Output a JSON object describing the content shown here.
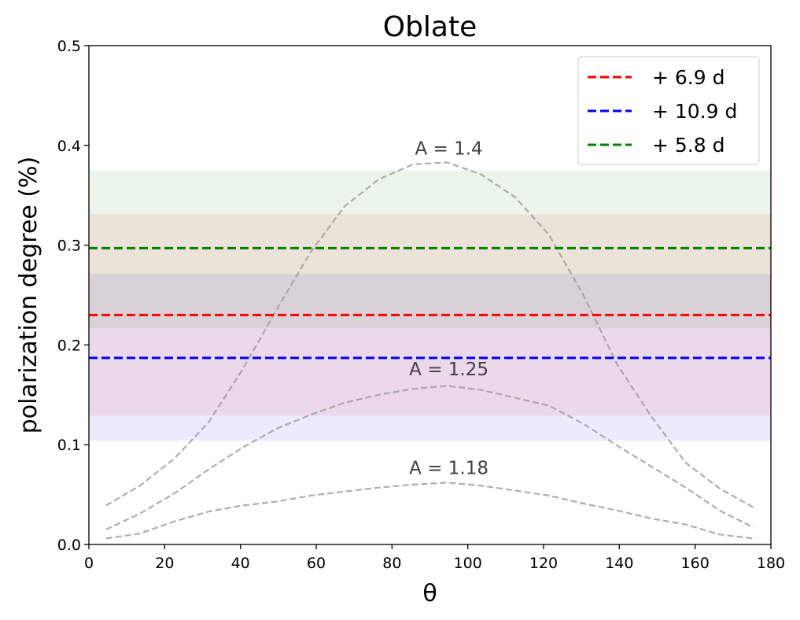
{
  "chart_data": {
    "type": "line",
    "title": "Oblate",
    "xlabel": "θ",
    "ylabel": "polarization degree (%)",
    "xlim": [
      0,
      180
    ],
    "ylim": [
      0,
      0.5
    ],
    "xticks": [
      0,
      20,
      40,
      60,
      80,
      100,
      120,
      140,
      160,
      180
    ],
    "yticks": [
      0.0,
      0.1,
      0.2,
      0.3,
      0.4,
      0.5
    ],
    "xtick_labels": [
      "0",
      "20",
      "40",
      "60",
      "80",
      "100",
      "120",
      "140",
      "160",
      "180"
    ],
    "ytick_labels": [
      "0.0",
      "0.1",
      "0.2",
      "0.3",
      "0.4",
      "0.5"
    ],
    "grid": false,
    "legend_position": "top-right",
    "bands": [
      {
        "color": "#0000ff",
        "opacity": 0.08,
        "y": [
          0.104,
          0.271
        ]
      },
      {
        "color": "#ff0000",
        "opacity": 0.08,
        "y": [
          0.129,
          0.331
        ]
      },
      {
        "color": "#008000",
        "opacity": 0.08,
        "y": [
          0.217,
          0.375
        ]
      }
    ],
    "hlines": [
      {
        "name": "+ 6.9 d",
        "value": 0.23,
        "color": "#ff0000"
      },
      {
        "name": "+ 10.9 d",
        "value": 0.187,
        "color": "#0000ff"
      },
      {
        "name": "+ 5.8 d",
        "value": 0.297,
        "color": "#008000"
      }
    ],
    "curves": [
      {
        "name": "A = 1.4",
        "label_at": [
          95,
          0.397
        ],
        "x": [
          4.5,
          13.5,
          22.5,
          31.5,
          40.5,
          49.5,
          58.5,
          67.5,
          76.5,
          85.5,
          94.5,
          103.5,
          112.5,
          121.5,
          130.5,
          139.5,
          148.5,
          157.5,
          166.5,
          175.5
        ],
        "y": [
          0.039,
          0.059,
          0.086,
          0.122,
          0.175,
          0.235,
          0.293,
          0.339,
          0.366,
          0.381,
          0.383,
          0.371,
          0.348,
          0.31,
          0.25,
          0.18,
          0.128,
          0.082,
          0.056,
          0.037
        ]
      },
      {
        "name": "A = 1.25",
        "label_at": [
          95,
          0.176
        ],
        "x": [
          4.5,
          13.5,
          22.5,
          31.5,
          40.5,
          49.5,
          58.5,
          67.5,
          76.5,
          85.5,
          94.5,
          103.5,
          112.5,
          121.5,
          130.5,
          139.5,
          148.5,
          157.5,
          166.5,
          175.5
        ],
        "y": [
          0.015,
          0.031,
          0.051,
          0.075,
          0.097,
          0.116,
          0.13,
          0.142,
          0.15,
          0.156,
          0.159,
          0.155,
          0.147,
          0.139,
          0.121,
          0.099,
          0.078,
          0.057,
          0.034,
          0.017
        ]
      },
      {
        "name": "A = 1.18",
        "label_at": [
          95,
          0.077
        ],
        "x": [
          4.5,
          13.5,
          22.5,
          31.5,
          40.5,
          49.5,
          58.5,
          67.5,
          76.5,
          85.5,
          94.5,
          103.5,
          112.5,
          121.5,
          130.5,
          139.5,
          148.5,
          157.5,
          166.5,
          175.5
        ],
        "y": [
          0.006,
          0.011,
          0.023,
          0.033,
          0.039,
          0.043,
          0.049,
          0.053,
          0.057,
          0.06,
          0.062,
          0.059,
          0.054,
          0.049,
          0.041,
          0.034,
          0.026,
          0.02,
          0.01,
          0.006
        ]
      }
    ],
    "curve_color": "#a0a0a0"
  }
}
